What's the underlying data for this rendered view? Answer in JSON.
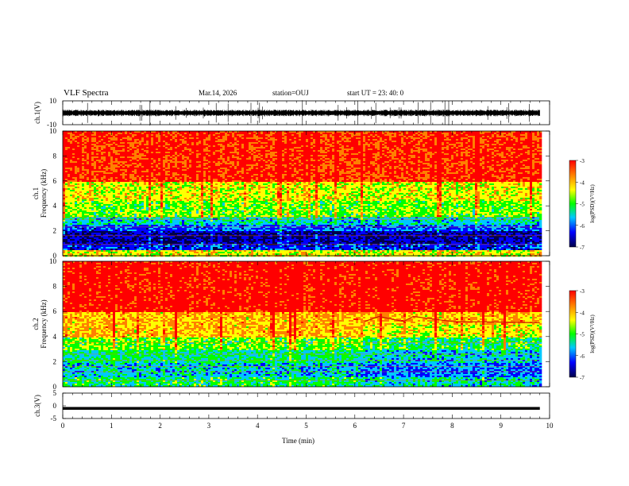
{
  "header": {
    "title": "VLF Spectra",
    "date": "Mar.14, 2026",
    "station": "station=OUJ",
    "start": "start  UT  =   23: 40: 0"
  },
  "chart_data": [
    {
      "type": "line",
      "name": "ch1-waveform",
      "ylabel": "ch.1(V)",
      "ylim": [
        -10,
        10
      ],
      "ytick_labels": [
        "10",
        "-10"
      ],
      "x_range_min": [
        0,
        9.8
      ]
    },
    {
      "type": "heatmap",
      "name": "ch1-spectrogram",
      "ylabel": "ch.1 Frequency (kHz)",
      "ylim": [
        0,
        10
      ],
      "ytick_labels": [
        "0",
        "2",
        "4",
        "6",
        "8",
        "10"
      ],
      "colorbar": {
        "label": "log(PSD)(V²/Hz)",
        "range": [
          -7,
          -3
        ],
        "tick_labels": [
          "-3",
          "-4",
          "-5",
          "-6",
          "-7"
        ]
      },
      "bands_khz": [
        {
          "from": 0.0,
          "to": 0.5,
          "log_psd": -4.5
        },
        {
          "from": 0.5,
          "to": 1.0,
          "log_psd": -6.2
        },
        {
          "from": 1.0,
          "to": 2.0,
          "log_psd": -6.5
        },
        {
          "from": 2.0,
          "to": 2.6,
          "log_psd": -6.0
        },
        {
          "from": 2.6,
          "to": 3.2,
          "log_psd": -5.5
        },
        {
          "from": 3.2,
          "to": 4.5,
          "log_psd": -5.0
        },
        {
          "from": 4.5,
          "to": 6.0,
          "log_psd": -4.6
        },
        {
          "from": 6.0,
          "to": 10.0,
          "log_psd": -3.6
        }
      ]
    },
    {
      "type": "heatmap",
      "name": "ch2-spectrogram",
      "ylabel": "ch.2 Frequency (kHz)",
      "ylim": [
        0,
        10
      ],
      "ytick_labels": [
        "0",
        "2",
        "4",
        "6",
        "8",
        "10"
      ],
      "colorbar": {
        "label": "log(PSD)(V²/Hz)",
        "range": [
          -7,
          -3
        ],
        "tick_labels": [
          "-3",
          "-4",
          "-5",
          "-6",
          "-7"
        ]
      },
      "bands_khz": [
        {
          "from": 0.0,
          "to": 0.8,
          "log_psd": -5.2
        },
        {
          "from": 0.8,
          "to": 2.0,
          "log_psd": -5.6
        },
        {
          "from": 2.0,
          "to": 3.0,
          "log_psd": -5.3
        },
        {
          "from": 3.0,
          "to": 4.0,
          "log_psd": -5.0
        },
        {
          "from": 4.0,
          "to": 6.0,
          "log_psd": -4.3
        },
        {
          "from": 6.0,
          "to": 10.0,
          "log_psd": -3.4
        }
      ],
      "emission_line_khz": [
        {
          "t": 6.2,
          "f": 5.2
        },
        {
          "t": 6.5,
          "f": 5.6
        },
        {
          "t": 7.0,
          "f": 5.2
        },
        {
          "t": 7.2,
          "f": 5.6
        },
        {
          "t": 8.0,
          "f": 5.2
        },
        {
          "t": 9.8,
          "f": 5.1
        }
      ]
    },
    {
      "type": "line",
      "name": "ch3-waveform",
      "ylabel": "ch.3(V)",
      "ylim": [
        -5,
        5
      ],
      "ytick_labels": [
        "5",
        "0",
        "-5"
      ],
      "level_v": -1.0
    }
  ],
  "x_axis": {
    "label": "Time (min)",
    "xlim": [
      0,
      10
    ],
    "tick_labels": [
      "0",
      "1",
      "2",
      "3",
      "4",
      "5",
      "6",
      "7",
      "8",
      "9",
      "10"
    ]
  },
  "colors": {
    "scale": [
      "#00004a",
      "#0000ff",
      "#00c8ff",
      "#00ff00",
      "#ffff00",
      "#ff8000",
      "#ff0000"
    ]
  }
}
